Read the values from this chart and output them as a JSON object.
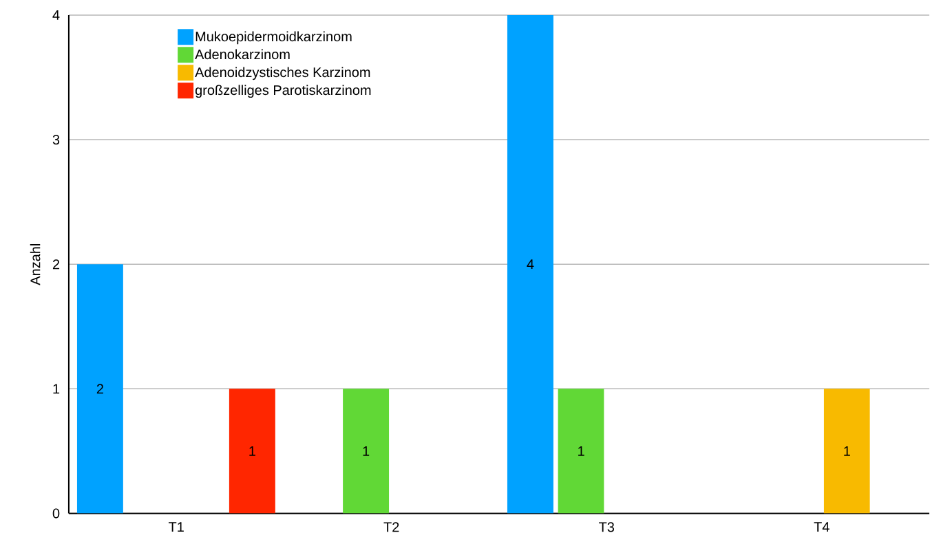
{
  "chart_data": {
    "type": "bar",
    "ylabel": "Anzahl",
    "categories": [
      "T1",
      "T2",
      "T3",
      "T4"
    ],
    "series": [
      {
        "name": "Mukoepidermoidkarzinom",
        "color": "#00a2ff",
        "values": [
          2,
          null,
          4,
          null
        ]
      },
      {
        "name": "Adenokarzinom",
        "color": "#61d836",
        "values": [
          null,
          1,
          1,
          null
        ]
      },
      {
        "name": "Adenoidzystisches Karzinom",
        "color": "#f8ba00",
        "values": [
          null,
          null,
          null,
          1
        ]
      },
      {
        "name": "großzelliges Parotiskarzinom",
        "color": "#ff2600",
        "values": [
          1,
          null,
          null,
          null
        ]
      }
    ],
    "ylim": [
      0,
      4
    ],
    "yticks": [
      0,
      1,
      2,
      3,
      4
    ],
    "grid": "y",
    "legend": "top left",
    "data_labels": true
  }
}
